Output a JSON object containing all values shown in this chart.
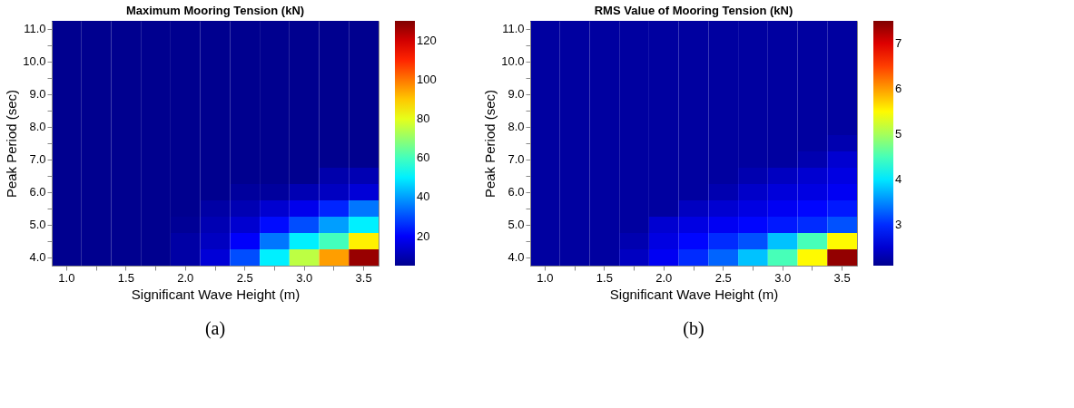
{
  "chart_data": [
    {
      "type": "heatmap",
      "title": "Maximum Mooring Tension (kN)",
      "xlabel": "Significant Wave Height (m)",
      "ylabel": "Peak Period (sec)",
      "annotations": [
        "(a)"
      ],
      "categories": [
        "1.0",
        null,
        "1.5",
        null,
        "2.0",
        null,
        "2.5",
        null,
        "3.0",
        null,
        "3.5"
      ],
      "y_categories": [
        "11.0",
        null,
        "10.0",
        null,
        "9.0",
        null,
        "8.0",
        null,
        "7.0",
        null,
        "6.0",
        null,
        "5.0",
        null,
        "4.0"
      ],
      "cells": [
        [
          5,
          5,
          5,
          5,
          5,
          5,
          5,
          5,
          5,
          5,
          5
        ],
        [
          5,
          5,
          5,
          5,
          5,
          5,
          5,
          5,
          5,
          5,
          5
        ],
        [
          5,
          5,
          5,
          5,
          5,
          5,
          5,
          5,
          5,
          5,
          5
        ],
        [
          5,
          5,
          5,
          5,
          5,
          5,
          5,
          5,
          5,
          5,
          5
        ],
        [
          5,
          5,
          5,
          5,
          5,
          5,
          5,
          5,
          5,
          5,
          5
        ],
        [
          5,
          5,
          5,
          5,
          5,
          5,
          5,
          5,
          5,
          5,
          5
        ],
        [
          5,
          5,
          5,
          5,
          5,
          5,
          5,
          5,
          5,
          5,
          5
        ],
        [
          5,
          5,
          5,
          5,
          5,
          5,
          5,
          5,
          5,
          5,
          5
        ],
        [
          5,
          5,
          5,
          5,
          5,
          5,
          5,
          5,
          5,
          5,
          5
        ],
        [
          5,
          5,
          5,
          5,
          5,
          5,
          5,
          5,
          5,
          9,
          10
        ],
        [
          5,
          5,
          5,
          5,
          5,
          5,
          7,
          7,
          10,
          12,
          15
        ],
        [
          5,
          5,
          5,
          5,
          5,
          8,
          10,
          14,
          18,
          25,
          35
        ],
        [
          5,
          5,
          5,
          5,
          6,
          10,
          14,
          22,
          30,
          40,
          50
        ],
        [
          5,
          5,
          5,
          5,
          8,
          12,
          20,
          35,
          50,
          60,
          85
        ],
        [
          5,
          5,
          5,
          5,
          8,
          15,
          30,
          50,
          75,
          95,
          127
        ]
      ],
      "clim": [
        5,
        130
      ],
      "cticks": [
        20,
        40,
        60,
        80,
        100,
        120
      ]
    },
    {
      "type": "heatmap",
      "title": "RMS Value of Mooring Tension (kN)",
      "xlabel": "Significant Wave Height (m)",
      "ylabel": "Peak Period (sec)",
      "annotations": [
        "(b)"
      ],
      "categories": [
        "1.0",
        null,
        "1.5",
        null,
        "2.0",
        null,
        "2.5",
        null,
        "3.0",
        null,
        "3.5"
      ],
      "y_categories": [
        "11.0",
        null,
        "10.0",
        null,
        "9.0",
        null,
        "8.0",
        null,
        "7.0",
        null,
        "6.0",
        null,
        "5.0",
        null,
        "4.0"
      ],
      "cells": [
        [
          2.2,
          2.2,
          2.2,
          2.2,
          2.2,
          2.2,
          2.2,
          2.2,
          2.2,
          2.2,
          2.2
        ],
        [
          2.2,
          2.2,
          2.2,
          2.2,
          2.2,
          2.2,
          2.2,
          2.2,
          2.2,
          2.2,
          2.2
        ],
        [
          2.2,
          2.2,
          2.2,
          2.2,
          2.2,
          2.2,
          2.2,
          2.2,
          2.2,
          2.2,
          2.2
        ],
        [
          2.2,
          2.2,
          2.2,
          2.2,
          2.2,
          2.2,
          2.2,
          2.2,
          2.2,
          2.2,
          2.2
        ],
        [
          2.2,
          2.2,
          2.2,
          2.2,
          2.2,
          2.2,
          2.2,
          2.2,
          2.2,
          2.2,
          2.2
        ],
        [
          2.2,
          2.2,
          2.2,
          2.2,
          2.2,
          2.2,
          2.2,
          2.2,
          2.2,
          2.2,
          2.2
        ],
        [
          2.2,
          2.2,
          2.2,
          2.2,
          2.2,
          2.2,
          2.2,
          2.2,
          2.2,
          2.2,
          2.2
        ],
        [
          2.2,
          2.2,
          2.2,
          2.2,
          2.2,
          2.2,
          2.2,
          2.2,
          2.2,
          2.2,
          2.3
        ],
        [
          2.2,
          2.2,
          2.2,
          2.2,
          2.2,
          2.2,
          2.2,
          2.2,
          2.2,
          2.3,
          2.5
        ],
        [
          2.2,
          2.2,
          2.2,
          2.2,
          2.2,
          2.2,
          2.2,
          2.3,
          2.4,
          2.5,
          2.6
        ],
        [
          2.2,
          2.2,
          2.2,
          2.2,
          2.2,
          2.2,
          2.3,
          2.45,
          2.55,
          2.6,
          2.7
        ],
        [
          2.2,
          2.2,
          2.2,
          2.2,
          2.2,
          2.4,
          2.5,
          2.6,
          2.7,
          2.8,
          2.9
        ],
        [
          2.2,
          2.2,
          2.2,
          2.2,
          2.5,
          2.6,
          2.7,
          2.8,
          2.9,
          3.0,
          3.2
        ],
        [
          2.2,
          2.2,
          2.2,
          2.3,
          2.6,
          2.8,
          3.0,
          3.2,
          3.8,
          4.5,
          5.5
        ],
        [
          2.2,
          2.2,
          2.2,
          2.4,
          2.7,
          3.0,
          3.3,
          3.8,
          4.5,
          5.5,
          7.4
        ]
      ],
      "clim": [
        2.1,
        7.5
      ],
      "cticks": [
        3,
        4,
        5,
        6,
        7
      ]
    }
  ]
}
